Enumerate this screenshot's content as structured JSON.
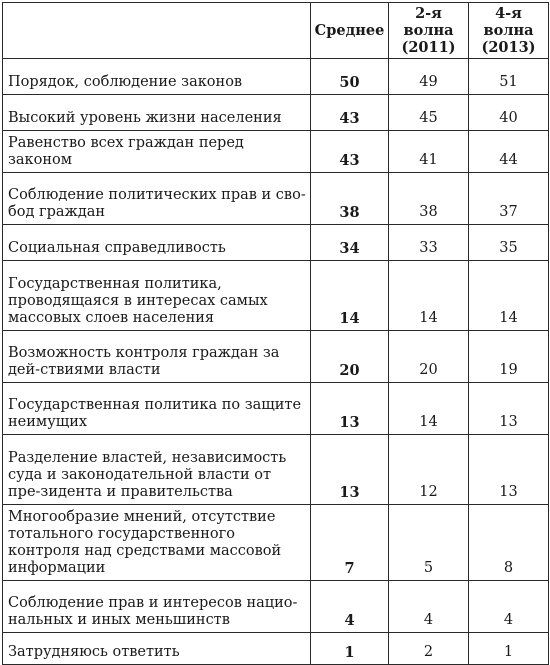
{
  "table": {
    "headers": {
      "label": "",
      "average": "Среднее",
      "wave2_line1": "2-я волна",
      "wave2_line2": "(2011)",
      "wave4_line1": "4-я волна",
      "wave4_line2": "(2013)"
    },
    "rows": [
      {
        "label": "Порядок, соблюдение законов",
        "average": "50",
        "wave2": "49",
        "wave4": "51"
      },
      {
        "label": "Высокий уровень жизни населения",
        "average": "43",
        "wave2": "45",
        "wave4": "40"
      },
      {
        "label": "Равенство всех граждан перед законом",
        "average": "43",
        "wave2": "41",
        "wave4": "44"
      },
      {
        "label": "Соблюдение политических прав и сво-бод граждан",
        "average": "38",
        "wave2": "38",
        "wave4": "37"
      },
      {
        "label": "Социальная справедливость",
        "average": "34",
        "wave2": "33",
        "wave4": "35"
      },
      {
        "label": "Государственная политика, проводящаяся в интересах самых массовых слоев населения",
        "average": "14",
        "wave2": "14",
        "wave4": "14"
      },
      {
        "label": "Возможность контроля граждан за дей-ствиями власти",
        "average": "20",
        "wave2": "20",
        "wave4": "19"
      },
      {
        "label": "Государственная политика по защите неимущих",
        "average": "13",
        "wave2": "14",
        "wave4": "13"
      },
      {
        "label": "Разделение властей, независимость суда и законодательной власти от пре-зидента и правительства",
        "average": "13",
        "wave2": "12",
        "wave4": "13"
      },
      {
        "label": "Многообразие мнений, отсутствие тотального государственного контроля над средствами массовой информации",
        "average": "7",
        "wave2": "5",
        "wave4": "8"
      },
      {
        "label": "Соблюдение прав и интересов нацио-нальных и иных меньшинств",
        "average": "4",
        "wave2": "4",
        "wave4": "4"
      },
      {
        "label": "Затрудняюсь ответить",
        "average": "1",
        "wave2": "2",
        "wave4": "1"
      }
    ]
  }
}
